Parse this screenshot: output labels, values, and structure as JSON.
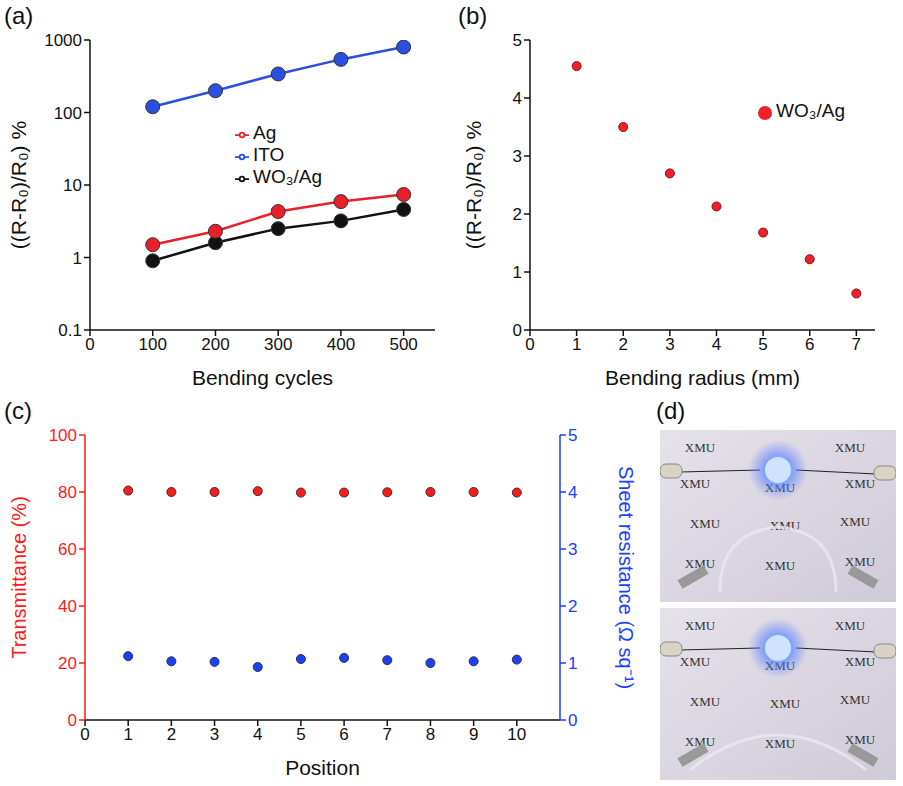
{
  "chart_data": [
    {
      "panel": "(a)",
      "type": "line",
      "x": [
        100,
        200,
        300,
        400,
        500
      ],
      "xlabel": "Bending cycles",
      "ylabel": "((R-R₀)/R₀) %",
      "xlim": [
        0,
        550
      ],
      "xticks": [
        0,
        100,
        200,
        300,
        400,
        500
      ],
      "ylim": [
        0.1,
        1000
      ],
      "yticks": [
        0.1,
        1,
        10,
        100,
        1000
      ],
      "log": "y",
      "legend": "upper center",
      "marker": "circle",
      "series": [
        {
          "name": "WO₃/Ag",
          "color": "#111111",
          "values": [
            0.9,
            1.6,
            2.5,
            3.2,
            4.6
          ]
        },
        {
          "name": "Ag",
          "color": "#e8202a",
          "values": [
            1.5,
            2.3,
            4.3,
            5.9,
            7.4
          ]
        },
        {
          "name": "ITO",
          "color": "#2b4fe0",
          "values": [
            120,
            200,
            340,
            540,
            800
          ]
        }
      ]
    },
    {
      "panel": "(b)",
      "type": "scatter",
      "x": [
        1,
        2,
        3,
        4,
        5,
        6,
        7
      ],
      "xlabel": "Bending radius (mm)",
      "ylabel": "((R-R₀)/R₀) %",
      "xlim": [
        0,
        7.4
      ],
      "xticks": [
        0,
        1,
        2,
        3,
        4,
        5,
        6,
        7
      ],
      "ylim": [
        0,
        5
      ],
      "yticks": [
        0,
        1,
        2,
        3,
        4,
        5
      ],
      "legend": "upper right",
      "marker": "circle",
      "series": [
        {
          "name": "WO₃/Ag",
          "color": "#f0202a",
          "values": [
            4.55,
            3.5,
            2.7,
            2.13,
            1.68,
            1.22,
            0.63
          ]
        }
      ]
    },
    {
      "panel": "(c)",
      "type": "scatter",
      "x": [
        1,
        2,
        3,
        4,
        5,
        6,
        7,
        8,
        9,
        10
      ],
      "xlabel": "Position",
      "ylabel": "Transmittance (%)",
      "y2label": "Sheet resistance (Ω sq⁻¹)",
      "xlim": [
        0,
        11
      ],
      "xticks": [
        0,
        1,
        2,
        3,
        4,
        5,
        6,
        7,
        8,
        9,
        10
      ],
      "ylim": [
        0,
        100
      ],
      "yticks": [
        0,
        20,
        40,
        60,
        80,
        100
      ],
      "y2lim": [
        0,
        5
      ],
      "y2ticks": [
        0,
        1,
        2,
        3,
        4,
        5
      ],
      "marker": "circle",
      "series": [
        {
          "color": "#ff1a1a",
          "values": [
            80.5,
            80.0,
            80.0,
            80.3,
            79.8,
            79.8,
            79.9,
            80.0,
            80.0,
            79.8
          ]
        },
        {
          "color": "#1a3fff",
          "axis": "y2",
          "values": [
            1.12,
            1.03,
            1.02,
            0.93,
            1.07,
            1.09,
            1.05,
            1.0,
            1.03,
            1.06
          ]
        }
      ]
    }
  ],
  "photo": {
    "panel": "(d)",
    "text": "XMU"
  }
}
